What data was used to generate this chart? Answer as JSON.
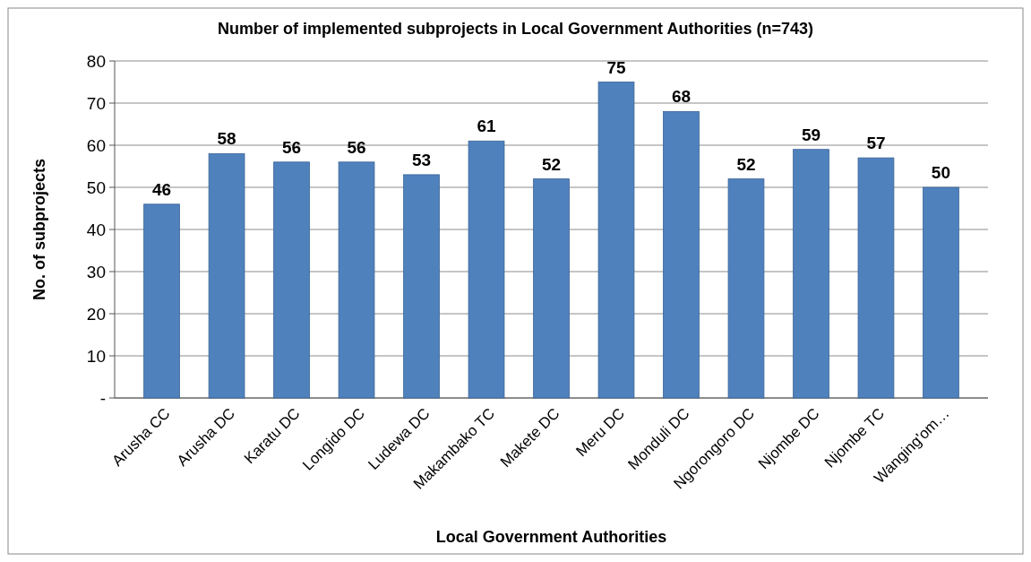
{
  "chart_data": {
    "type": "bar",
    "title": "Number of implemented subprojects in Local Government Authorities (n=743)",
    "xlabel": "Local Government Authorities",
    "ylabel": "No. of subprojects",
    "categories": [
      "Arusha CC",
      "Arusha DC",
      "Karatu DC",
      "Longido DC",
      "Ludewa DC",
      "Makambako TC",
      "Makete DC",
      "Meru DC",
      "Monduli  DC",
      "Ngorongoro DC",
      "Njombe  DC",
      "Njombe TC",
      "Wanging'om…"
    ],
    "values": [
      46,
      58,
      56,
      56,
      53,
      61,
      52,
      75,
      68,
      52,
      59,
      57,
      50
    ],
    "color": "#4f81bd",
    "ylim": [
      0,
      80
    ],
    "yticks": [
      {
        "value": 0,
        "label": "-"
      },
      10,
      20,
      30,
      40,
      50,
      60,
      70,
      80
    ],
    "grid": "y",
    "data_labels": true
  }
}
